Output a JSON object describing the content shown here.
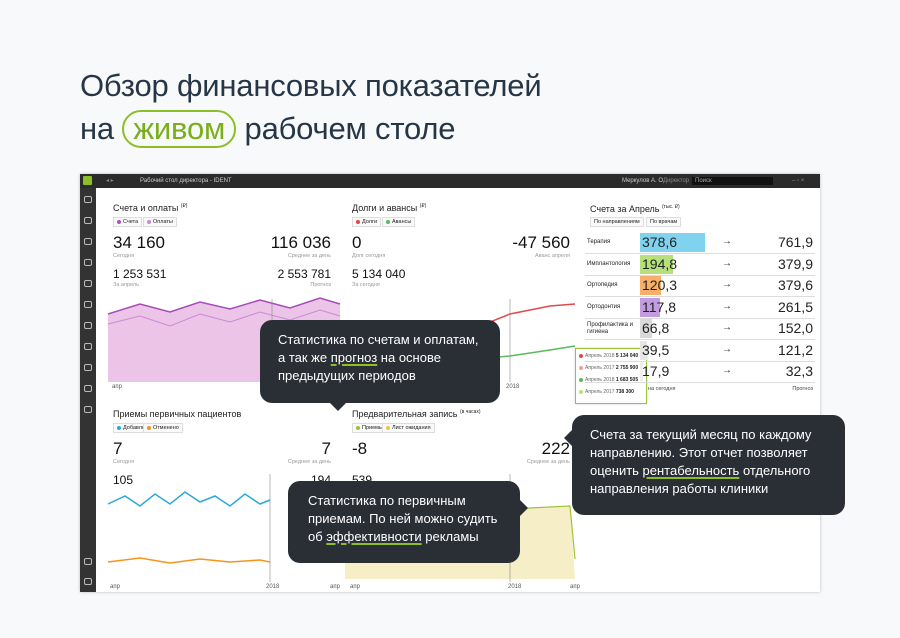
{
  "header": {
    "line1": "Обзор финансовых показателей",
    "line2_pre": "на",
    "line2_highlight": "живом",
    "line2_post": "рабочем столе"
  },
  "app": {
    "window_title": "Рабочий стол директора - IDENT",
    "user": "Меркулов А. О.",
    "role": "Директор",
    "search": "Поиск",
    "panels": [
      {
        "title": "Счета и оплаты",
        "unit": "(₽)",
        "legend": [
          "Счета",
          "Оплаты"
        ],
        "stats": {
          "today": {
            "value": "34 160",
            "label": "Сегодня"
          },
          "average": {
            "value": "116 036",
            "label": "Среднее за день"
          },
          "month": {
            "value": "1 253 531",
            "label": "За апрель"
          },
          "forecast": {
            "value": "2 553 781",
            "label": "Прогноз"
          }
        },
        "axis": [
          "апр"
        ]
      },
      {
        "title": "Долги и авансы",
        "unit": "(₽)",
        "legend": [
          "Долги",
          "Авансы"
        ],
        "stats": {
          "today": {
            "value": "0",
            "label": "Долг сегодня"
          },
          "average": {
            "value": "-47 560",
            "label": "Аванс апреля"
          },
          "month": {
            "value": "5 134 040",
            "label": "За сегодня"
          }
        },
        "axis": [
          "2018"
        ]
      },
      {
        "title": "Приемы первичных пациентов",
        "legend": [
          "Добавлено",
          "Отменено"
        ],
        "stats": {
          "today": {
            "value": "7",
            "label": "Сегодня"
          },
          "average": {
            "value": "7",
            "label": "Среднее за день"
          },
          "month": {
            "value": "105"
          },
          "forecast": {
            "value": "194"
          }
        },
        "axis": [
          "апр",
          "2018",
          "апр"
        ]
      },
      {
        "title": "Предварительная запись",
        "unit": "(в часах)",
        "legend": [
          "Приемы",
          "Лист ожидания"
        ],
        "stats": {
          "today": {
            "value": "-8"
          },
          "average": {
            "value": "222",
            "label": "Среднее за день"
          },
          "month": {
            "value": "539"
          }
        },
        "axis": [
          "апр",
          "2018",
          "апр"
        ]
      }
    ],
    "report": {
      "title": "Счета за Апрель",
      "unit": "(тыс. ₽)",
      "buttons": [
        "По направлениям",
        "По врачам"
      ],
      "rows": [
        {
          "name": "Терапия",
          "current": "378,6",
          "arrow": "→",
          "forecast": "761,9"
        },
        {
          "name": "Имплантология",
          "current": "194,8",
          "arrow": "→",
          "forecast": "379,9"
        },
        {
          "name": "Ортопедия",
          "current": "120,3",
          "arrow": "→",
          "forecast": "379,6"
        },
        {
          "name": "Ортодонтия",
          "current": "117,8",
          "arrow": "→",
          "forecast": "261,5"
        },
        {
          "name": "Профилактика и гигиена",
          "current": "66,8",
          "arrow": "→",
          "forecast": "152,0"
        },
        {
          "current": "39,5",
          "arrow": "→",
          "forecast": "121,2"
        },
        {
          "current": "17,9",
          "arrow": "→",
          "forecast": "32,3"
        }
      ],
      "footer": [
        "на сегодня",
        "Прогноз"
      ],
      "tooltip": [
        {
          "period": "Апрель 2018",
          "value": "5 134 040"
        },
        {
          "period": "Апрель 2017",
          "value": "2 755 900"
        },
        {
          "period": "Апрель 2018",
          "value": "1 683 505"
        },
        {
          "period": "Апрель 2017",
          "value": "738 300"
        }
      ]
    }
  },
  "callouts": [
    {
      "pre": "Статистика по счетам и оплатам, а так же ",
      "link": "прогноз",
      "post": " на основе предыдущих периодов"
    },
    {
      "pre": "Счета за текущий месяц по каждому направлению. Этот отчет позволяет оценить ",
      "link": "рентабельность",
      "post": " отдельного направления работы клиники"
    },
    {
      "pre": "Статистика по первичным приемам. По ней можно судить об ",
      "link": "эффективности",
      "post": " рекламы"
    }
  ]
}
